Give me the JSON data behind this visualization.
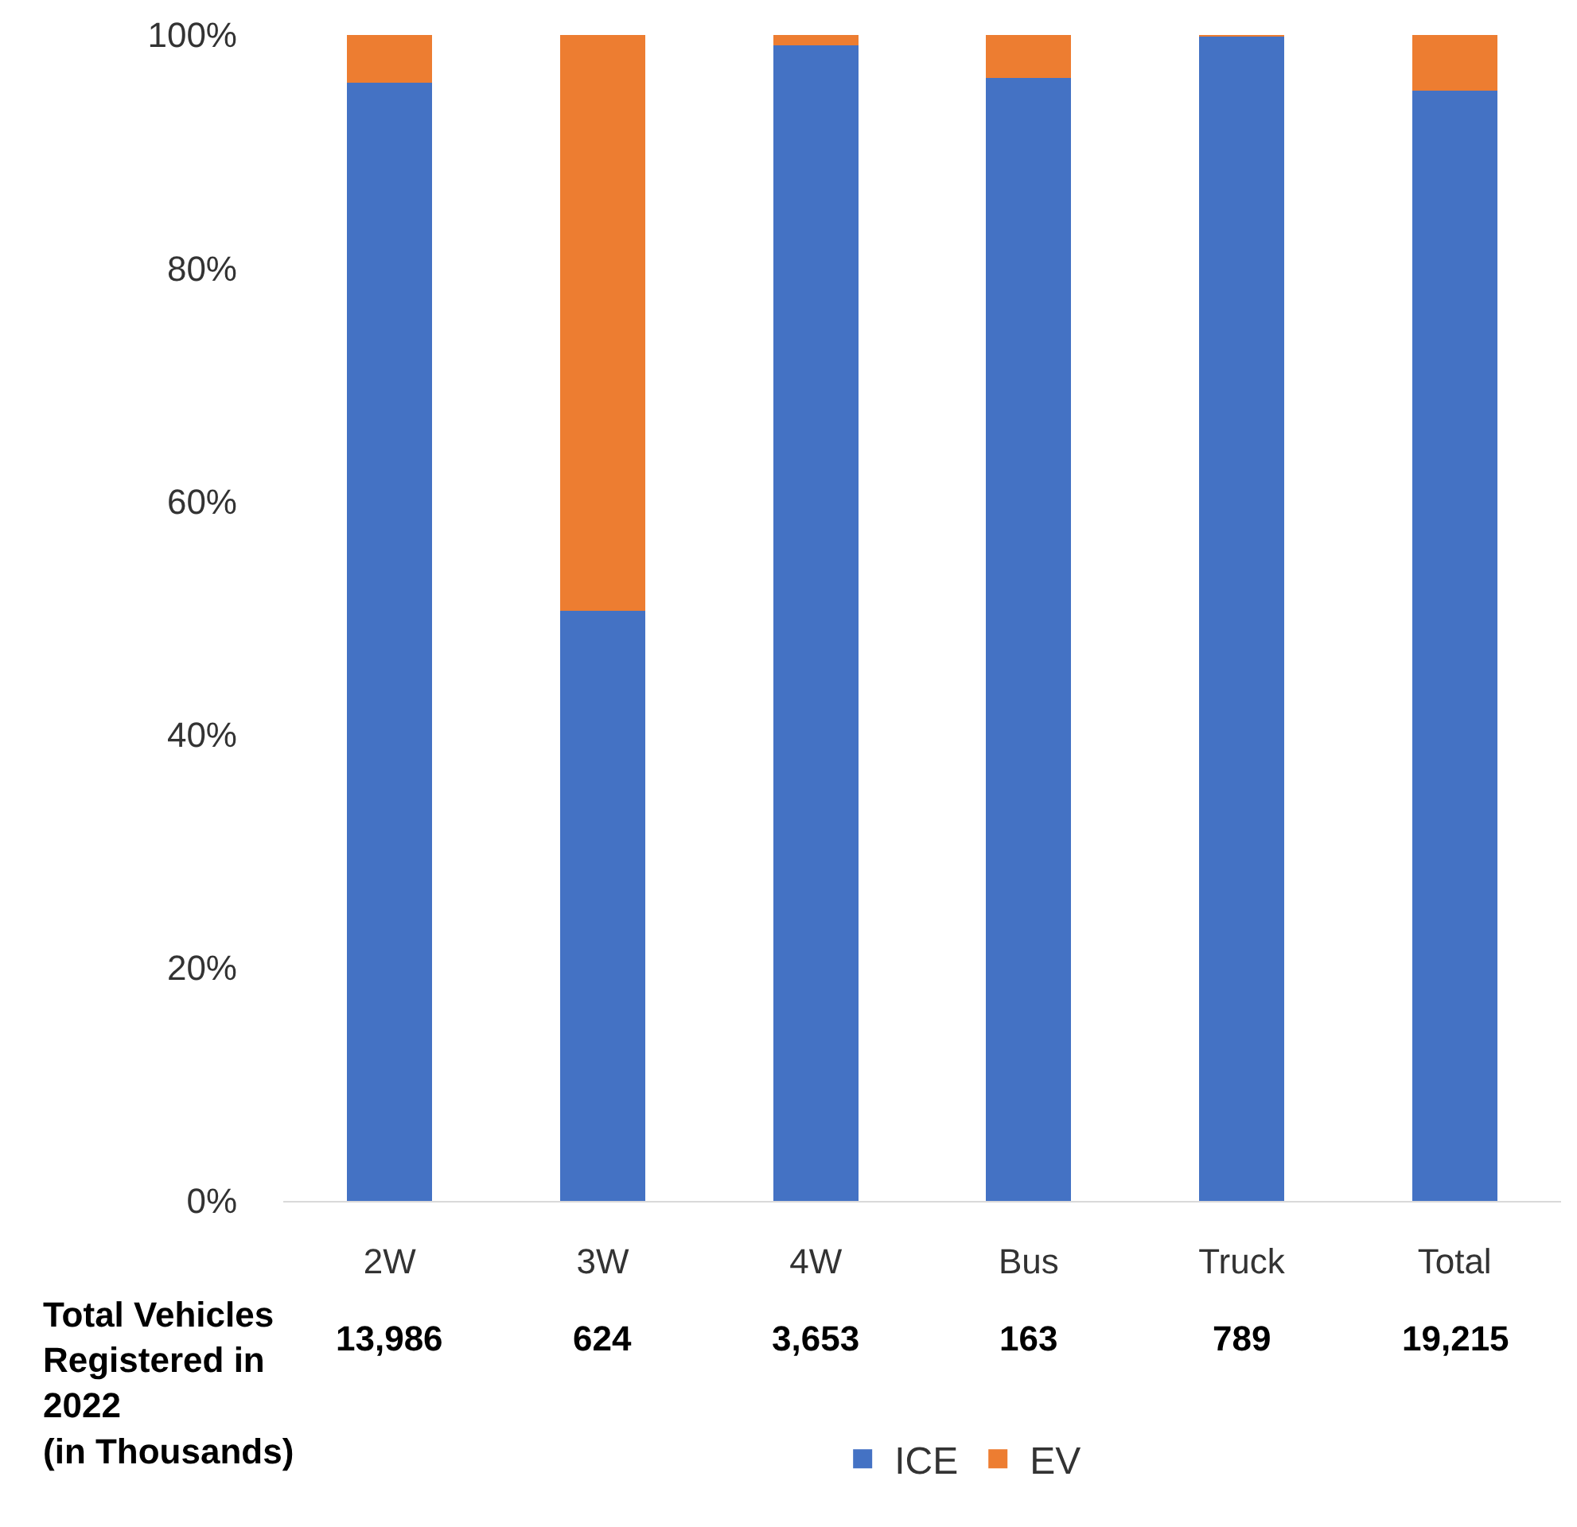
{
  "chart_data": {
    "type": "bar",
    "stacked": true,
    "categories": [
      "2W",
      "3W",
      "4W",
      "Bus",
      "Truck",
      "Total"
    ],
    "series": [
      {
        "name": "ICE",
        "color": "#4472c4",
        "values": [
          95.9,
          50.6,
          99.1,
          96.3,
          99.9,
          95.2
        ]
      },
      {
        "name": "EV",
        "color": "#ed7d31",
        "values": [
          4.1,
          49.4,
          0.9,
          3.7,
          0.1,
          4.8
        ]
      }
    ],
    "ylim": [
      0,
      100
    ],
    "yticks": [
      {
        "value": 0,
        "label": "0%"
      },
      {
        "value": 20,
        "label": "20%"
      },
      {
        "value": 40,
        "label": "40%"
      },
      {
        "value": 60,
        "label": "60%"
      },
      {
        "value": 80,
        "label": "80%"
      },
      {
        "value": 100,
        "label": "100%"
      }
    ],
    "legend": "bottom",
    "annotations": [
      "Total Vehicles Registered in 2022 (in Thousands)",
      "13,986",
      "624",
      "3,653",
      "163",
      "789",
      "19,215"
    ]
  }
}
